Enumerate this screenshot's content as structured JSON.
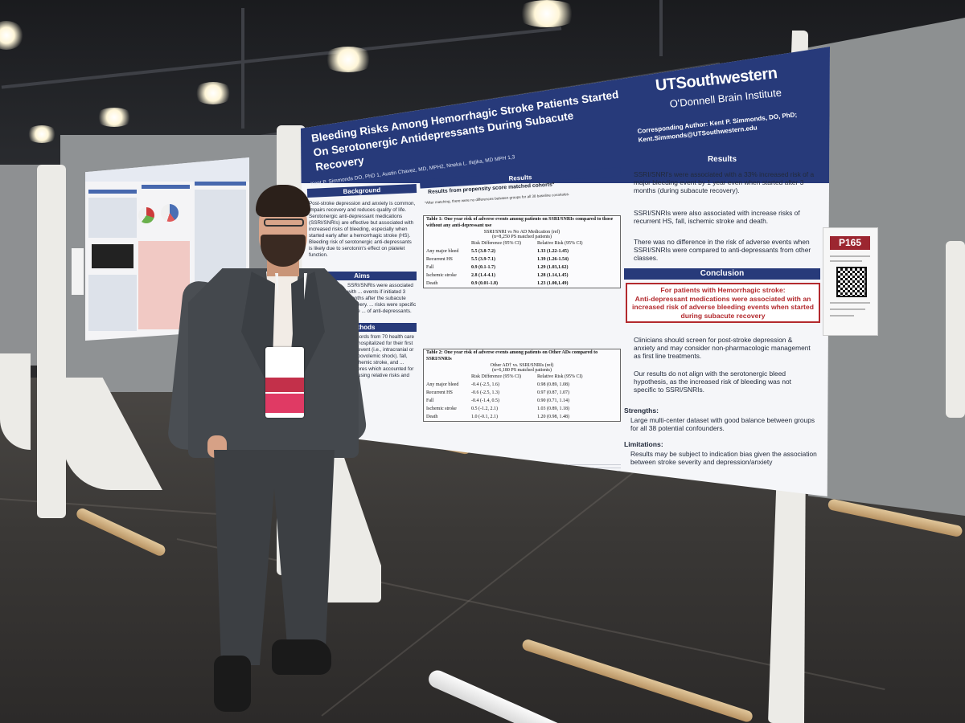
{
  "poster": {
    "title": "Bleeding Risks Among Hemorrhagic Stroke Patients Started On Serotonergic Antidepressants During Subacute Recovery",
    "authors": "Kent P. Simmonds DO, PhD 1, Austin Chavez, MD, MPH2, Nneka L. Ifejika, MD MPH 1,3",
    "logo": "UTSouthwestern",
    "logo_sub": "O'Donnell Brain Institute",
    "corresponding_line1": "Corresponding Author: Kent P. Simmonds, DO, PhD;",
    "corresponding_line2": "Kent.Simmonds@UTSouthwestern.edu",
    "background": {
      "heading": "Background",
      "text": "Post-stroke depression and anxiety is common, impairs recovery and reduces quality of life. Serotonergic anti-depressant medications (SSRI/SNRIs) are effective but associated with increased risks of bleeding, especially when started early after a hemorrhagic stroke (HS). Bleeding risk of serotonergic anti-depressants is likely due to serotonin's effect on platelet function."
    },
    "aims": {
      "heading": "Aims",
      "text": "SSRI/SNRIs were associated with ... events if initiated 3 months after the subacute recovery. ... risks were specific to the ... of anti-depressants."
    },
    "methods": {
      "heading": "Methods",
      "text": "records from 70 health care ... hospitalized for their first ... event (i.e., intracranial or hypovolemic shock). fall, ischemic stroke, and ... scores which accounted for ... using relative risks and"
    },
    "results_mid": {
      "heading": "Results",
      "subheading": "Results from propensity score matched cohorts*",
      "note": "*After matching, there were no differences between groups for all 38 baseline covariates.",
      "table1": {
        "caption": "Table 1: One year risk of adverse events among patients on SSRI/SNRIs compared to those without any anti-depressant use",
        "group": "SSRI/SNRI vs No AD Medication (ref)",
        "n": "(n=8,250 PS matched patients)",
        "col_rd": "Risk Difference (95% CI)",
        "col_rr": "Relative Risk (95% CI)",
        "rows": [
          {
            "event": "Any major bleed",
            "rd": "5.5 (3.8-7.2)",
            "rr": "1.33 (1.22-1.45)"
          },
          {
            "event": "Recurrent HS",
            "rd": "5.5 (3.9-7.1)",
            "rr": "1.39 (1.26-1.54)"
          },
          {
            "event": "Fall",
            "rd": "0.9 (0.1-1.7)",
            "rr": "1.29 (1.03,1.62)"
          },
          {
            "event": "Ischemic stroke",
            "rd": "2.8 (1.4-4.1)",
            "rr": "1.28 (1.14,1.45)"
          },
          {
            "event": "Death",
            "rd": "0.9 (0.01-1.8)",
            "rr": "1.23 (1.00,1.49)"
          }
        ]
      },
      "table2": {
        "caption": "Table 2: One year risk of adverse events among patients on Other ADs compared to SSRI/SNRIs",
        "group": "Other AD† vs. SSRI/SNRIs (ref)",
        "n": "(n=6,180 PS matched patients)",
        "col_rd": "Risk Difference (95% CI)",
        "col_rr": "Relative Risk (95% CI)",
        "rows": [
          {
            "event": "Any major bleed",
            "rd": "-0.4 (-2.5, 1.6)",
            "rr": "0.98 (0.89, 1.08)"
          },
          {
            "event": "Recurrent HS",
            "rd": "-0.6 (-2.5, 1.3)",
            "rr": "0.97 (0.87, 1.07)"
          },
          {
            "event": "Fall",
            "rd": "-0.4 (-1.4, 0.5)",
            "rr": "0.90 (0.71, 1.14)"
          },
          {
            "event": "Ischemic stroke",
            "rd": "0.5 (-1.2, 2.1)",
            "rr": "1.03 (0.89, 1.18)"
          },
          {
            "event": "Death",
            "rd": "1.0 (-0.1, 2.1)",
            "rr": "1.20 (0.98, 1.48)"
          }
        ]
      }
    },
    "results_right": {
      "heading": "Results",
      "bullets": [
        "SSRI/SNRI's were associated with a 33% increased risk of a major bleeding event by 1 year even when started after 3 months (during subacute recovery).",
        "SSRI/SNRIs were also associated with increase risks of recurrent HS, fall, ischemic stroke and death.",
        "There was no difference in the risk of adverse events when SSRI/SNRIs were compared to anti-depressants from other classes."
      ]
    },
    "conclusion": {
      "heading": "Conclusion",
      "box_lead": "For patients with Hemorrhagic stroke:",
      "box_text": "Anti-depressant medications were associated with an increased risk of adverse bleeding events when started during subacute recovery",
      "bullets": [
        "Clinicians should screen for post-stroke depression & anxiety and may consider non-pharmacologic management as first line treatments.",
        "Our results do not align with the serotonergic bleed hypothesis, as the increased risk of bleeding was not specific to SSRI/SNRIs."
      ],
      "strengths_heading": "Strengths:",
      "strengths": "Large multi-center dataset with good balance between groups for all 38 potential confounders.",
      "limitations_heading": "Limitations:",
      "limitations": "Results may be subject to indication bias given the association between stroke severity and depression/anxiety"
    }
  },
  "sign": {
    "number": "P165"
  },
  "colors": {
    "header_blue": "#273a7a",
    "conclusion_red": "#b32a2e",
    "sign_red": "#9c2630"
  }
}
